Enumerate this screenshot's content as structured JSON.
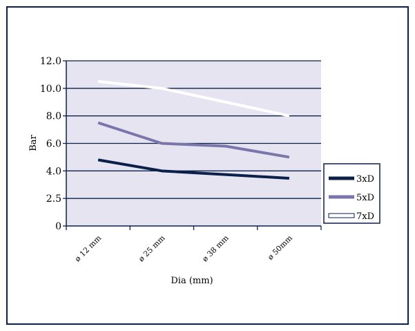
{
  "chart_data": {
    "type": "line",
    "ylabel": "Bar",
    "xlabel": "Dia (mm)",
    "categories": [
      "ø 12 mm",
      "ø 25 mm",
      "ø 38 mm",
      "ø 50mm"
    ],
    "y_tick_labels": [
      "0",
      "2.5",
      "4.0",
      "6.0",
      "8.0",
      "10.0",
      "12.0"
    ],
    "grid": true,
    "legend_position": "right",
    "plot_background": "#e6e4f0",
    "series": [
      {
        "name": "3xD",
        "color": "#0a1f4a",
        "values": [
          4.8,
          4.0,
          3.8,
          3.6
        ]
      },
      {
        "name": "5xD",
        "color": "#7a76ac",
        "values": [
          7.5,
          6.0,
          5.8,
          5.0
        ]
      },
      {
        "name": "7xD",
        "color": "#ffffff",
        "values": [
          10.5,
          10.0,
          9.0,
          8.0
        ]
      }
    ]
  }
}
